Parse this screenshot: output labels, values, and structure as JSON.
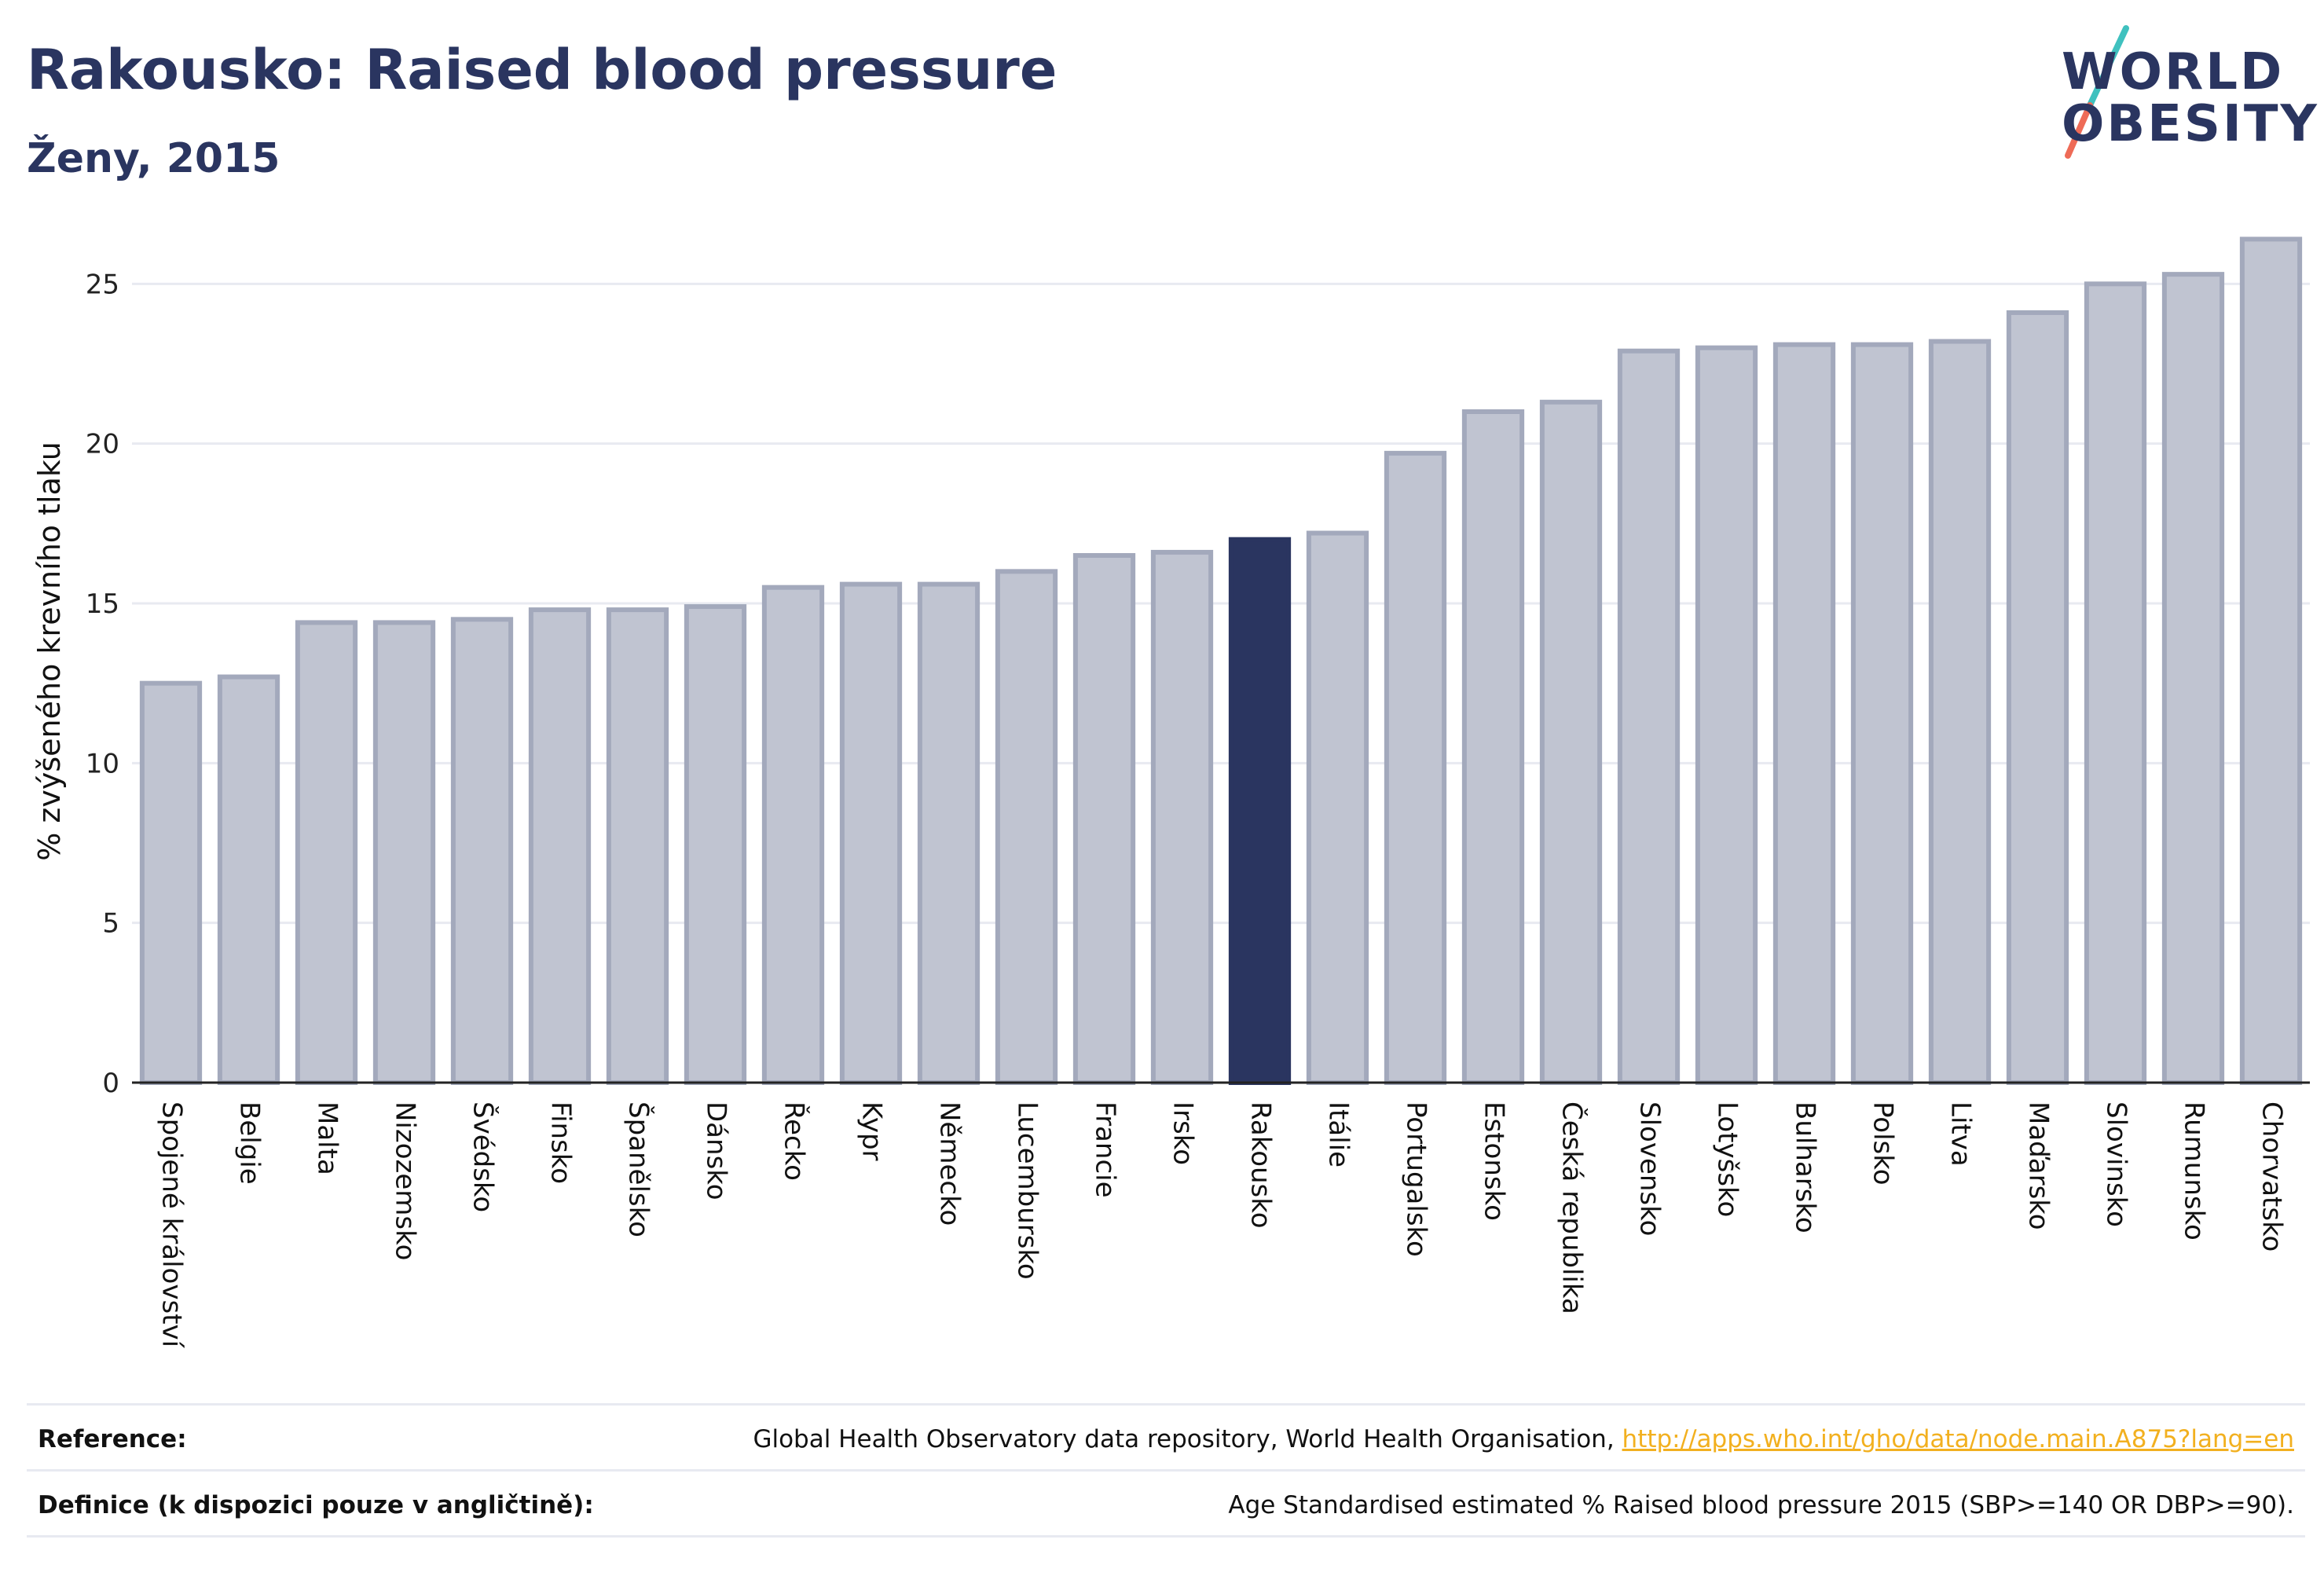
{
  "header": {
    "title": "Rakousko: Raised blood pressure",
    "subtitle": "Ženy, 2015"
  },
  "logo": {
    "line1": "WORLD",
    "line2": "OBESITY"
  },
  "chart_data": {
    "type": "bar",
    "ylabel": "% zvýšeného krevního tlaku",
    "ylim": [
      0,
      27
    ],
    "yticks": [
      0,
      5,
      10,
      15,
      20,
      25
    ],
    "grid": true,
    "highlight": "Rakousko",
    "categories": [
      "Spojené království",
      "Belgie",
      "Malta",
      "Nizozemsko",
      "Švédsko",
      "Finsko",
      "Španělsko",
      "Dánsko",
      "Řecko",
      "Kypr",
      "Německo",
      "Lucembursko",
      "Francie",
      "Irsko",
      "Rakousko",
      "Itálie",
      "Portugalsko",
      "Estonsko",
      "Česká republika",
      "Slovensko",
      "Lotyšsko",
      "Bulharsko",
      "Polsko",
      "Litva",
      "Maďarsko",
      "Slovinsko",
      "Rumunsko",
      "Chorvatsko"
    ],
    "values": [
      12.5,
      12.7,
      14.4,
      14.4,
      14.5,
      14.8,
      14.8,
      14.9,
      15.5,
      15.6,
      15.6,
      16.0,
      16.5,
      16.6,
      17.0,
      17.2,
      19.7,
      21.0,
      21.3,
      22.9,
      23.0,
      23.1,
      23.1,
      23.2,
      24.1,
      25.0,
      25.3,
      26.4
    ],
    "colors": {
      "bar": "#c0c4d1",
      "bar_border": "#a3a9bc",
      "highlight": "#2a3560",
      "grid": "#e8eaf1",
      "axis": "#222222"
    }
  },
  "footer": {
    "reference_label": "Reference:",
    "reference_text": "Global Health Observatory data repository, World Health Organisation, ",
    "reference_link": "http://apps.who.int/gho/data/node.main.A875?lang=en",
    "definition_label": "Definice (k dispozici pouze v angličtině):",
    "definition_text": "Age Standardised estimated % Raised blood pressure 2015 (SBP>=140 OR DBP>=90)."
  }
}
